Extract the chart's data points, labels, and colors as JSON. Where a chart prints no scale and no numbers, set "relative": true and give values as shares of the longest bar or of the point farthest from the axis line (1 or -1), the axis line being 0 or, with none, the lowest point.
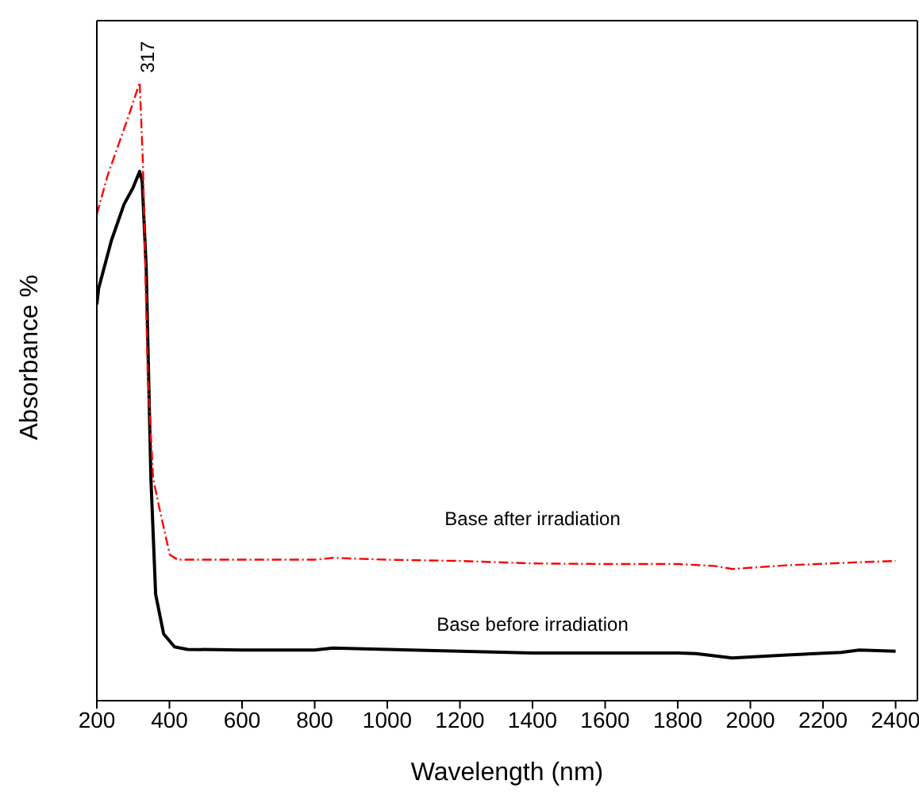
{
  "chart_data": {
    "type": "line",
    "xlabel": "Wavelength (nm)",
    "ylabel": "Absorbance %",
    "relative": true,
    "xlim": [
      200,
      2460
    ],
    "xticks": [
      200,
      400,
      600,
      800,
      1000,
      1200,
      1400,
      1600,
      1800,
      2000,
      2200,
      2400
    ],
    "tick_labels": "x",
    "grid": false,
    "legend": false,
    "marker": "none",
    "annotations": [
      {
        "text": "317",
        "x": 317,
        "y": 1
      }
    ],
    "series": [
      {
        "name": "Base before irradiation",
        "color": "#000000",
        "line_style": "solid",
        "x": [
          200,
          205,
          240,
          275,
          300,
          318,
          325,
          336,
          349,
          362,
          384,
          414,
          450,
          600,
          800,
          850,
          1000,
          1200,
          1400,
          1600,
          1800,
          1850,
          1950,
          2100,
          2250,
          2300,
          2400
        ],
        "values": [
          0.641,
          0.667,
          0.744,
          0.803,
          0.83,
          0.856,
          0.84,
          0.7,
          0.359,
          0.172,
          0.108,
          0.087,
          0.083,
          0.082,
          0.082,
          0.085,
          0.083,
          0.08,
          0.077,
          0.077,
          0.077,
          0.076,
          0.069,
          0.074,
          0.078,
          0.082,
          0.08
        ]
      },
      {
        "name": "Base after irradiation",
        "color": "#ff0000",
        "line_style": "dashed",
        "x": [
          200,
          230,
          260,
          290,
          318,
          327,
          340,
          355,
          371,
          401,
          423,
          600,
          800,
          850,
          1000,
          1200,
          1400,
          1600,
          1800,
          1900,
          1950,
          2100,
          2300,
          2400
        ],
        "values": [
          0.787,
          0.85,
          0.9,
          0.95,
          1,
          0.87,
          0.53,
          0.36,
          0.315,
          0.236,
          0.228,
          0.228,
          0.228,
          0.231,
          0.228,
          0.226,
          0.222,
          0.221,
          0.221,
          0.218,
          0.213,
          0.219,
          0.224,
          0.226
        ]
      }
    ]
  }
}
